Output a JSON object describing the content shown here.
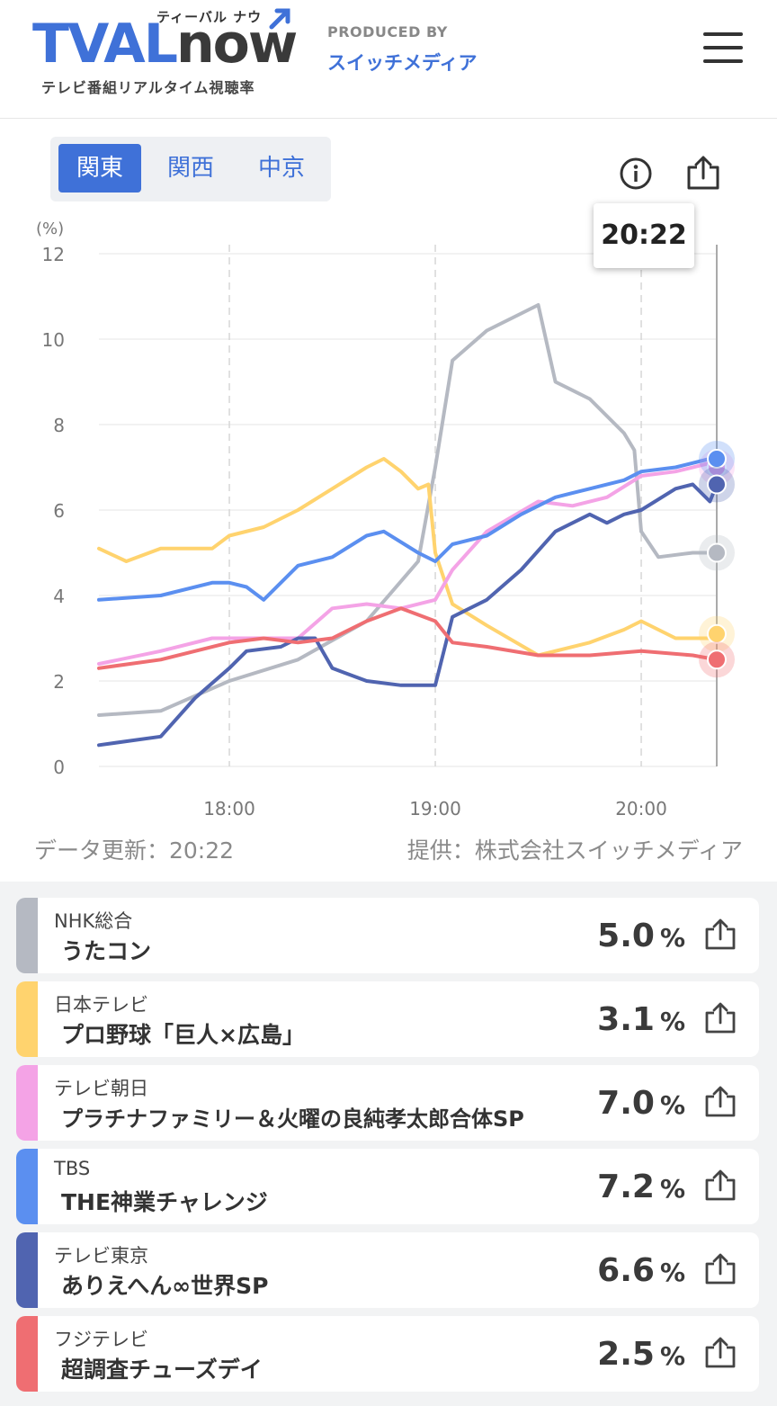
{
  "header": {
    "logo_tv": "TVAL",
    "logo_now": "now",
    "logo_kana": "ティーバル ナウ",
    "logo_sub": "テレビ番組リアルタイム視聴率",
    "produced_by": "PRODUCED BY",
    "producer": "スイッチメディア"
  },
  "regions": [
    {
      "label": "関東",
      "active": true
    },
    {
      "label": "関西",
      "active": false
    },
    {
      "label": "中京",
      "active": false
    }
  ],
  "tooltip_time": "20:22",
  "footer": {
    "updated": "データ更新：20:22",
    "provider": "提供：株式会社スイッチメディア"
  },
  "colors": {
    "nhk": "#b5b9c2",
    "ntv": "#ffd36e",
    "tvasahi": "#f4a3e6",
    "tbs": "#5b8ff0",
    "tvtokyo": "#5064b0",
    "fuji": "#ef6e72",
    "accent": "#3f71d8"
  },
  "chart_data": {
    "type": "line",
    "ylabel": "(%)",
    "y_ticks": [
      "0",
      "2",
      "4",
      "6",
      "8",
      "10",
      "12"
    ],
    "x_ticks": [
      "18:00",
      "19:00",
      "20:00"
    ],
    "ylim": [
      0,
      12
    ],
    "xlim": [
      "17:22",
      "20:22"
    ],
    "grid": true,
    "series": [
      {
        "key": "nhk",
        "name": "NHK総合",
        "x": [
          "17:22",
          "17:40",
          "18:00",
          "18:20",
          "18:40",
          "18:55",
          "19:00",
          "19:05",
          "19:15",
          "19:25",
          "19:30",
          "19:35",
          "19:45",
          "19:55",
          "19:58",
          "20:00",
          "20:05",
          "20:15",
          "20:22"
        ],
        "y": [
          1.2,
          1.3,
          2.0,
          2.5,
          3.4,
          4.8,
          7.0,
          9.5,
          10.2,
          10.6,
          10.8,
          9.0,
          8.6,
          7.8,
          7.4,
          5.5,
          4.9,
          5.0,
          5.0
        ]
      },
      {
        "key": "ntv",
        "name": "日本テレビ",
        "x": [
          "17:22",
          "17:30",
          "17:40",
          "17:55",
          "18:00",
          "18:10",
          "18:20",
          "18:30",
          "18:40",
          "18:45",
          "18:50",
          "18:55",
          "18:58",
          "19:00",
          "19:05",
          "19:15",
          "19:30",
          "19:45",
          "19:55",
          "20:00",
          "20:10",
          "20:20",
          "20:22"
        ],
        "y": [
          5.1,
          4.8,
          5.1,
          5.1,
          5.4,
          5.6,
          6.0,
          6.5,
          7.0,
          7.2,
          6.9,
          6.5,
          6.6,
          5.0,
          3.8,
          3.3,
          2.6,
          2.9,
          3.2,
          3.4,
          3.0,
          3.0,
          3.1
        ]
      },
      {
        "key": "tvasahi",
        "name": "テレビ朝日",
        "x": [
          "17:22",
          "17:40",
          "17:55",
          "18:00",
          "18:10",
          "18:20",
          "18:30",
          "18:40",
          "18:50",
          "19:00",
          "19:05",
          "19:15",
          "19:30",
          "19:40",
          "19:50",
          "20:00",
          "20:10",
          "20:20",
          "20:22"
        ],
        "y": [
          2.4,
          2.7,
          3.0,
          3.0,
          3.0,
          3.0,
          3.7,
          3.8,
          3.7,
          3.9,
          4.6,
          5.5,
          6.2,
          6.1,
          6.3,
          6.8,
          6.9,
          7.1,
          7.0
        ]
      },
      {
        "key": "tbs",
        "name": "TBS",
        "x": [
          "17:22",
          "17:40",
          "17:55",
          "18:00",
          "18:05",
          "18:10",
          "18:20",
          "18:30",
          "18:40",
          "18:45",
          "18:55",
          "19:00",
          "19:05",
          "19:15",
          "19:25",
          "19:35",
          "19:45",
          "19:55",
          "20:00",
          "20:10",
          "20:20",
          "20:22"
        ],
        "y": [
          3.9,
          4.0,
          4.3,
          4.3,
          4.2,
          3.9,
          4.7,
          4.9,
          5.4,
          5.5,
          5.0,
          4.8,
          5.2,
          5.4,
          5.9,
          6.3,
          6.5,
          6.7,
          6.9,
          7.0,
          7.2,
          7.2
        ]
      },
      {
        "key": "tvtokyo",
        "name": "テレビ東京",
        "x": [
          "17:22",
          "17:40",
          "17:50",
          "18:00",
          "18:05",
          "18:15",
          "18:20",
          "18:25",
          "18:30",
          "18:40",
          "18:50",
          "19:00",
          "19:05",
          "19:15",
          "19:25",
          "19:35",
          "19:45",
          "19:50",
          "19:55",
          "20:00",
          "20:10",
          "20:15",
          "20:20",
          "20:22"
        ],
        "y": [
          0.5,
          0.7,
          1.6,
          2.3,
          2.7,
          2.8,
          3.0,
          3.0,
          2.3,
          2.0,
          1.9,
          1.9,
          3.5,
          3.9,
          4.6,
          5.5,
          5.9,
          5.7,
          5.9,
          6.0,
          6.5,
          6.6,
          6.2,
          6.6
        ]
      },
      {
        "key": "fuji",
        "name": "フジテレビ",
        "x": [
          "17:22",
          "17:40",
          "18:00",
          "18:10",
          "18:20",
          "18:30",
          "18:40",
          "18:50",
          "19:00",
          "19:05",
          "19:15",
          "19:30",
          "19:45",
          "20:00",
          "20:15",
          "20:22"
        ],
        "y": [
          2.3,
          2.5,
          2.9,
          3.0,
          2.9,
          3.0,
          3.4,
          3.7,
          3.4,
          2.9,
          2.8,
          2.6,
          2.6,
          2.7,
          2.6,
          2.5
        ]
      }
    ]
  },
  "programs": [
    {
      "key": "nhk",
      "channel": "NHK総合",
      "program": "うたコン",
      "rating": "5.0",
      "unit": "%"
    },
    {
      "key": "ntv",
      "channel": "日本テレビ",
      "program": "プロ野球「巨人×広島」",
      "rating": "3.1",
      "unit": "%"
    },
    {
      "key": "tvasahi",
      "channel": "テレビ朝日",
      "program": "プラチナファミリー＆火曜の良純孝太郎合体SP",
      "rating": "7.0",
      "unit": "%"
    },
    {
      "key": "tbs",
      "channel": "TBS",
      "program": "THE神業チャレンジ",
      "rating": "7.2",
      "unit": "%"
    },
    {
      "key": "tvtokyo",
      "channel": "テレビ東京",
      "program": "ありえへん∞世界SP",
      "rating": "6.6",
      "unit": "%"
    },
    {
      "key": "fuji",
      "channel": "フジテレビ",
      "program": "超調査チューズデイ",
      "rating": "2.5",
      "unit": "%"
    }
  ]
}
